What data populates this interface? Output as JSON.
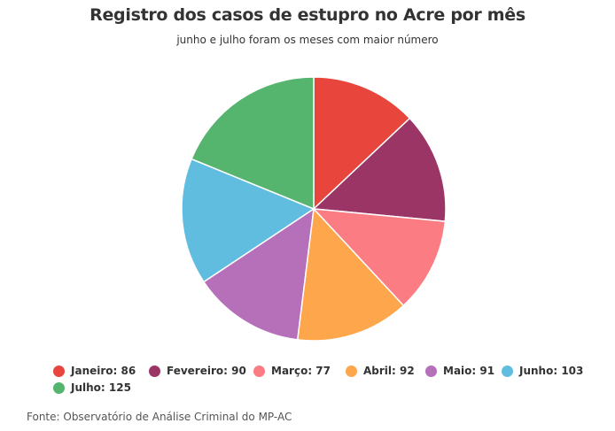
{
  "chart_data": {
    "type": "pie",
    "title": "Registro dos casos de estupro no Acre por mês",
    "subtitle": "junho e julho foram os meses com maior número",
    "slices": [
      {
        "label": "Janeiro",
        "value": 86,
        "color": "#e8453c",
        "legend_text": "Janeiro: 86"
      },
      {
        "label": "Fevereiro",
        "value": 90,
        "color": "#9b3565",
        "legend_text": "Fevereiro: 90"
      },
      {
        "label": "Março",
        "value": 77,
        "color": "#fb7c83",
        "legend_text": "Março: 77"
      },
      {
        "label": "Abril",
        "value": 92,
        "color": "#fea64c",
        "legend_text": "Abril: 92"
      },
      {
        "label": "Maio",
        "value": 91,
        "color": "#b570b9",
        "legend_text": "Maio: 91"
      },
      {
        "label": "Junho",
        "value": 103,
        "color": "#61bde0",
        "legend_text": "Junho: 103"
      },
      {
        "label": "Julho",
        "value": 125,
        "color": "#55b46d",
        "legend_text": "Julho: 125"
      }
    ],
    "start_angle": "12 o'clock",
    "direction": "clockwise",
    "legend_position": "bottom"
  },
  "source": "Fonte: Observatório de Análise Criminal do MP-AC"
}
